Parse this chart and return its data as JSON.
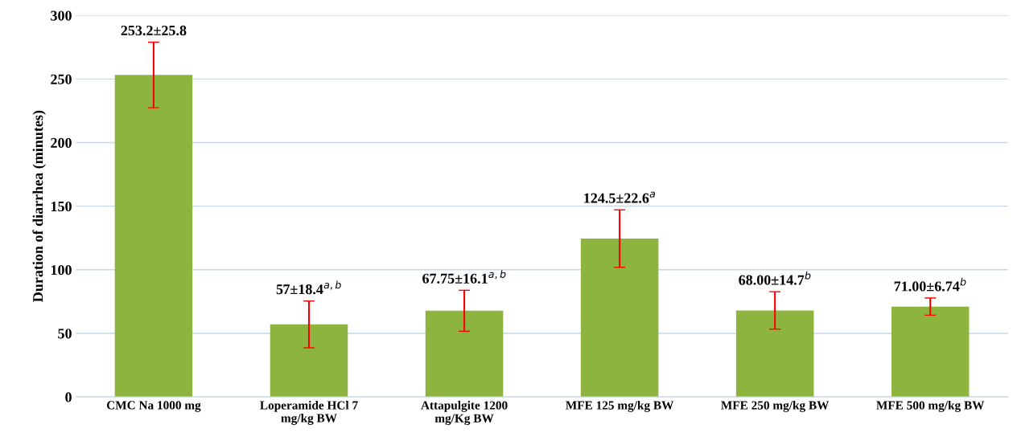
{
  "chart_data": {
    "type": "bar",
    "ylabel": "Duration of diarrhea (minutes)",
    "categories": [
      "CMC Na 1000 mg",
      "Loperamide HCl 7\nmg/kg BW",
      "Attapulgite 1200\nmg/Kg BW",
      "MFE 125 mg/kg BW",
      "MFE 250 mg/kg BW",
      "MFE 500 mg/kg BW"
    ],
    "values": [
      253.2,
      57,
      67.75,
      124.5,
      68.0,
      71.0
    ],
    "errors": [
      25.8,
      18.4,
      16.1,
      22.6,
      14.7,
      6.74
    ],
    "value_labels": [
      "253.2±25.8",
      "57±18.4$^{a,b}$",
      "67.75±16.1$^{a,b}$",
      "124.5±22.6$^{a}$",
      "68.00±14.7$^{b}$",
      "71.00±6.74$^{b}$"
    ],
    "color": "#8db43e",
    "ylim": [
      0,
      300
    ],
    "yticks": [
      0,
      50,
      100,
      150,
      200,
      250,
      300
    ],
    "grid": "y"
  }
}
